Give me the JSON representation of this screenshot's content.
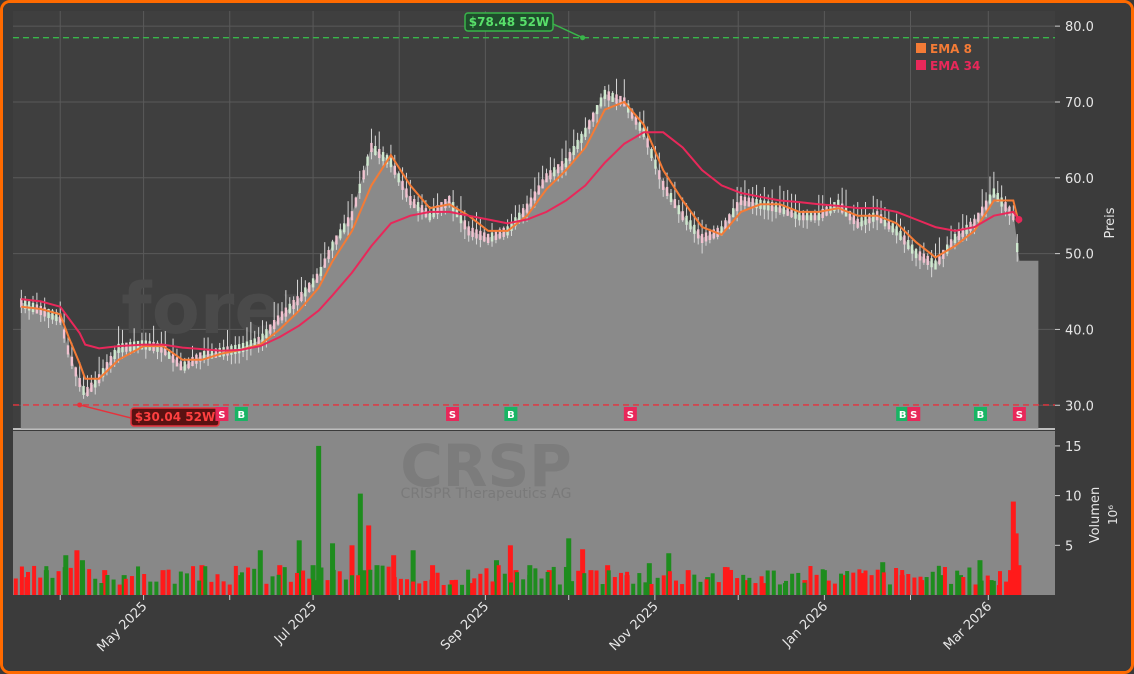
{
  "chart_data": [
    {
      "type": "line",
      "name": "price-panel",
      "ticker": "CRSP",
      "company": "CRISPR Therapeutics AG",
      "watermark": "forexsignale.trade",
      "ylabel": "Preis",
      "ylim": [
        27,
        82
      ],
      "yticks": [
        30,
        40,
        50,
        60,
        70,
        80
      ],
      "ytick_labels": [
        "30.0",
        "40.0",
        "50.0",
        "60.0",
        "70.0",
        "80.0"
      ],
      "x_dates": [
        "2025-03-18",
        "2025-03-25",
        "2025-04-01",
        "2025-04-04",
        "2025-04-08",
        "2025-04-10",
        "2025-04-15",
        "2025-04-22",
        "2025-05-01",
        "2025-05-08",
        "2025-05-15",
        "2025-05-22",
        "2025-05-29",
        "2025-06-05",
        "2025-06-12",
        "2025-06-19",
        "2025-06-26",
        "2025-07-03",
        "2025-07-08",
        "2025-07-15",
        "2025-07-22",
        "2025-07-29",
        "2025-08-05",
        "2025-08-12",
        "2025-08-19",
        "2025-08-26",
        "2025-09-02",
        "2025-09-09",
        "2025-09-16",
        "2025-09-23",
        "2025-09-30",
        "2025-10-07",
        "2025-10-14",
        "2025-10-21",
        "2025-10-28",
        "2025-11-04",
        "2025-11-11",
        "2025-11-18",
        "2025-11-25",
        "2025-12-02",
        "2025-12-09",
        "2025-12-16",
        "2025-12-23",
        "2025-12-30",
        "2026-01-06",
        "2026-01-13",
        "2026-01-20",
        "2026-01-27",
        "2026-02-03",
        "2026-02-10",
        "2026-02-17",
        "2026-02-24",
        "2026-03-03",
        "2026-03-10",
        "2026-03-12"
      ],
      "close": [
        43.5,
        42.5,
        41.5,
        37,
        33,
        31.5,
        33.5,
        37.5,
        38,
        37.5,
        35,
        36.5,
        37,
        37.5,
        38.5,
        41.5,
        44,
        47,
        51,
        55,
        64,
        62,
        57,
        55,
        57,
        53,
        52,
        53,
        56,
        60,
        62,
        66,
        71,
        70,
        66,
        59,
        55,
        52,
        53,
        57,
        56.5,
        56,
        55,
        55,
        56.5,
        54,
        55,
        53,
        50,
        48.5,
        52,
        54,
        58,
        55,
        49
      ],
      "series": [
        {
          "name": "EMA 8",
          "color": "#f47b36",
          "values": [
            43,
            42.7,
            42,
            39,
            35.5,
            33.5,
            33.5,
            36,
            37.8,
            37.8,
            36,
            36,
            36.8,
            37.3,
            38,
            40,
            42.5,
            45.5,
            49,
            53,
            59,
            63,
            59,
            56,
            56.5,
            55,
            53,
            53,
            55,
            58.5,
            61,
            64,
            69,
            70,
            67,
            61,
            57,
            53.5,
            52.5,
            55.5,
            56.5,
            56.5,
            55.5,
            55.5,
            56,
            55,
            55,
            54,
            51.5,
            49.5,
            51,
            53,
            57,
            57,
            54
          ]
        },
        {
          "name": "EMA 34",
          "color": "#e8285a",
          "values": [
            44,
            43.7,
            43,
            41.5,
            39.5,
            38,
            37.5,
            37.8,
            38,
            38,
            37.6,
            37.4,
            37.2,
            37.3,
            37.8,
            39,
            40.5,
            42.5,
            44.5,
            47.5,
            51,
            54,
            55,
            55.5,
            55.5,
            55,
            54.5,
            54,
            54.5,
            55.5,
            57,
            59,
            62,
            64.5,
            66,
            66,
            64,
            61,
            59,
            58,
            57.5,
            57,
            56.8,
            56.5,
            56.3,
            56,
            56,
            55.5,
            54.5,
            53.5,
            53,
            53.5,
            55,
            55.5,
            54.5
          ]
        }
      ],
      "legend": [
        "EMA 8",
        "EMA 34"
      ],
      "legend_position": "top-right",
      "hlines": [
        {
          "value": 78.48,
          "label": "$78.48 52W",
          "color": "#39b54a",
          "at_date": "2025-10-06"
        },
        {
          "value": 30.04,
          "label": "$30.04 52W",
          "color": "#e6323c",
          "at_date": "2025-04-08"
        }
      ],
      "signals": [
        {
          "date": "2025-05-29",
          "label": "S",
          "color": "#e8285a"
        },
        {
          "date": "2025-06-05",
          "label": "B",
          "color": "#19b464"
        },
        {
          "date": "2025-08-20",
          "label": "S",
          "color": "#e8285a"
        },
        {
          "date": "2025-09-10",
          "label": "B",
          "color": "#19b464"
        },
        {
          "date": "2025-10-23",
          "label": "S",
          "color": "#e8285a"
        },
        {
          "date": "2026-01-29",
          "label": "B",
          "color": "#19b464"
        },
        {
          "date": "2026-02-02",
          "label": "S",
          "color": "#e8285a"
        },
        {
          "date": "2026-02-26",
          "label": "B",
          "color": "#19b464"
        },
        {
          "date": "2026-03-12",
          "label": "S",
          "color": "#e8285a"
        }
      ],
      "grid": true
    },
    {
      "type": "bar",
      "name": "volume-panel",
      "ylabel": "Volumen",
      "yunit": "10⁶",
      "ylim": [
        0,
        16.5
      ],
      "yticks": [
        5,
        10,
        15
      ],
      "ytick_labels": [
        "5",
        "10",
        "15"
      ],
      "x_dates": [
        "2025-03-20",
        "2025-03-27",
        "2025-04-03",
        "2025-04-07",
        "2025-04-09",
        "2025-04-17",
        "2025-04-24",
        "2025-05-08",
        "2025-05-22",
        "2025-06-05",
        "2025-06-12",
        "2025-06-19",
        "2025-06-26",
        "2025-07-01",
        "2025-07-03",
        "2025-07-08",
        "2025-07-15",
        "2025-07-18",
        "2025-07-21",
        "2025-07-24",
        "2025-07-30",
        "2025-08-06",
        "2025-08-13",
        "2025-08-20",
        "2025-08-27",
        "2025-09-05",
        "2025-09-10",
        "2025-09-12",
        "2025-09-17",
        "2025-09-24",
        "2025-10-01",
        "2025-10-06",
        "2025-10-09",
        "2025-10-15",
        "2025-10-22",
        "2025-10-30",
        "2025-11-06",
        "2025-11-13",
        "2025-11-20",
        "2025-11-27",
        "2025-12-04",
        "2025-12-11",
        "2025-12-18",
        "2025-12-25",
        "2026-01-01",
        "2026-01-08",
        "2026-01-15",
        "2026-01-22",
        "2026-01-29",
        "2026-02-05",
        "2026-02-12",
        "2026-02-19",
        "2026-02-26",
        "2026-03-02",
        "2026-03-05",
        "2026-03-09",
        "2026-03-10",
        "2026-03-11",
        "2026-03-12"
      ],
      "values": [
        1.8,
        2.5,
        4,
        4.5,
        3.5,
        2.5,
        2,
        2.5,
        3,
        2,
        4.5,
        3,
        5.5,
        3,
        15,
        5.2,
        5,
        10.2,
        7,
        3,
        4,
        4.5,
        3,
        1.5,
        1.2,
        3.5,
        5,
        2.5,
        3,
        2.5,
        5.7,
        4.6,
        2.5,
        3,
        2,
        3.2,
        4.2,
        2.5,
        1.8,
        2.8,
        1.5,
        1.2,
        1.2,
        1.5,
        2.5,
        2,
        2.2,
        3.3,
        2,
        1.5,
        2,
        2,
        3.5,
        1.5,
        1,
        2.5,
        9.4,
        6.2,
        3
      ],
      "colors": [
        "red",
        "green",
        "green",
        "red",
        "green",
        "red",
        "green",
        "red",
        "red",
        "green",
        "green",
        "red",
        "green",
        "green",
        "green",
        "green",
        "red",
        "green",
        "red",
        "green",
        "red",
        "green",
        "red",
        "red",
        "red",
        "green",
        "red",
        "red",
        "green",
        "red",
        "green",
        "red",
        "red",
        "red",
        "red",
        "green",
        "green",
        "red",
        "green",
        "red",
        "red",
        "red",
        "green",
        "red",
        "green",
        "red",
        "red",
        "green",
        "red",
        "red",
        "green",
        "green",
        "green",
        "green",
        "red",
        "red",
        "red",
        "red",
        "red"
      ],
      "x_tick_labels": [
        "May 2025",
        "Jul 2025",
        "Sep 2025",
        "Nov 2025",
        "Jan 2026",
        "Mar 2026"
      ]
    }
  ]
}
